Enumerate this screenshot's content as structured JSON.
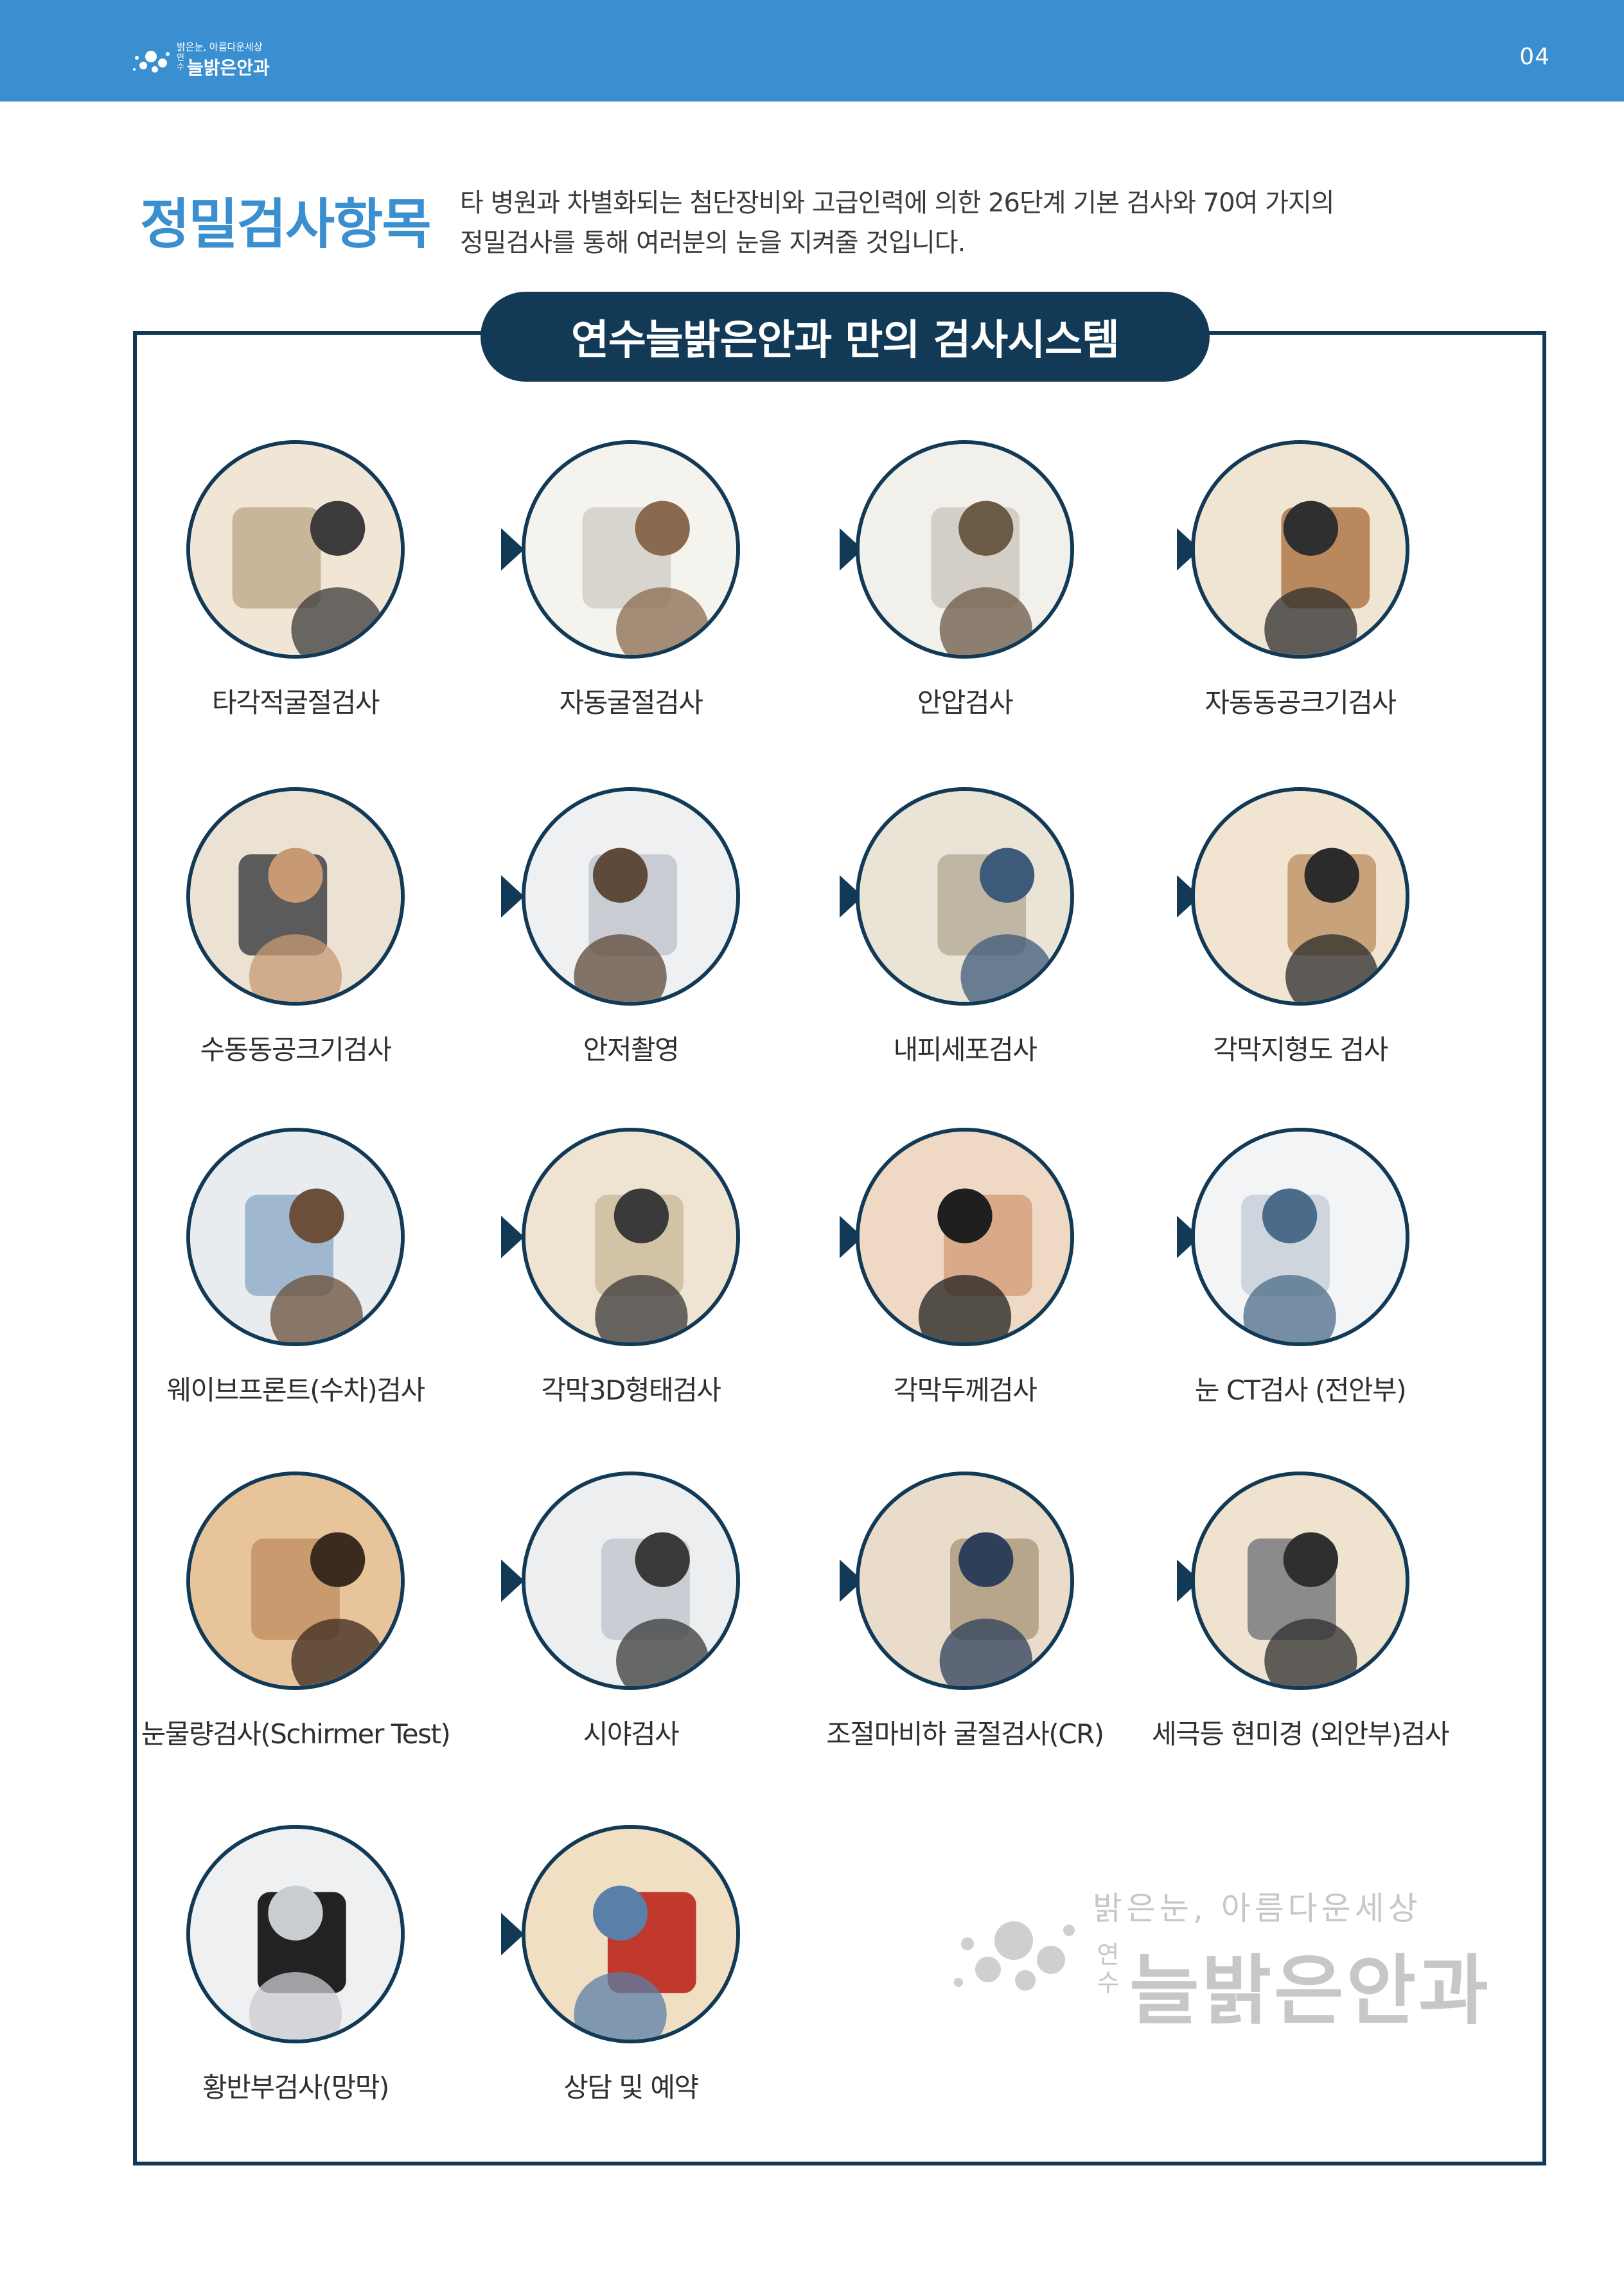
{
  "header": {
    "logo_slogan": "밝은눈, 아름다운세상",
    "logo_yeonsu": "연수",
    "logo_name": "늘밝은안과",
    "page_number": "04"
  },
  "section": {
    "title": "정밀검사항목",
    "intro_line1": "타 병원과 차별화되는 첨단장비와 고급인력에 의한 26단계 기본 검사와 70여 가지의",
    "intro_line2": "정밀검사를 통해 여러분의 눈을 지켜줄 것입니다."
  },
  "system": {
    "title": "연수늘밝은안과 만의 검사시스템"
  },
  "steps": [
    {
      "label": "타각적굴절검사"
    },
    {
      "label": "자동굴절검사"
    },
    {
      "label": "안압검사"
    },
    {
      "label": "자동동공크기검사"
    },
    {
      "label": "수동동공크기검사"
    },
    {
      "label": "안저촬영"
    },
    {
      "label": "내피세포검사"
    },
    {
      "label": "각막지형도 검사"
    },
    {
      "label": "웨이브프론트(수차)검사"
    },
    {
      "label": "각막3D형태검사"
    },
    {
      "label": "각막두께검사"
    },
    {
      "label": "눈 CT검사 (전안부)"
    },
    {
      "label": "눈물량검사(Schirmer Test)"
    },
    {
      "label": "시야검사"
    },
    {
      "label": "조절마비하 굴절검사(CR)"
    },
    {
      "label": "세극등 현미경 (외안부)검사"
    },
    {
      "label": "황반부검사(망막)"
    },
    {
      "label": "상담 및 예약"
    }
  ],
  "watermark": {
    "slogan": "밝은눈, 아름다운세상",
    "yeonsu": "연수",
    "name": "늘밝은안과"
  },
  "colors": {
    "header_blue": "#3a8fd0",
    "navy": "#123a56",
    "watermark_gray": "#c7c7c7"
  }
}
